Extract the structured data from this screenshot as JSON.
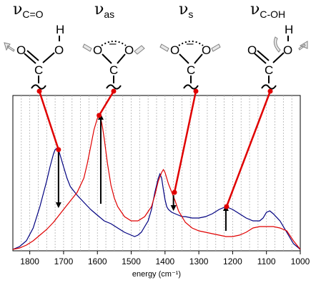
{
  "modes": [
    {
      "symbol": "ν",
      "sub": "C=O"
    },
    {
      "symbol": "ν",
      "sub": "as"
    },
    {
      "symbol": "ν",
      "sub": "s"
    },
    {
      "symbol": "ν",
      "sub": "C-OH"
    }
  ],
  "atoms": {
    "oxygen": "O",
    "carbon": "C",
    "hydrogen": "H",
    "charge": "–"
  },
  "colors": {
    "red": "#e00000",
    "blue": "#000080",
    "grid": "#b0b0b0"
  },
  "chart_data": {
    "type": "line",
    "xlabel": "energy (cm⁻¹)",
    "ylabel": "",
    "xlim": [
      1850,
      1000
    ],
    "ylim": [
      0,
      1
    ],
    "x_reversed": true,
    "xticks": [
      1800,
      1700,
      1600,
      1500,
      1400,
      1300,
      1200,
      1100,
      1000
    ],
    "grid": "vertical dashed every 25 cm-1",
    "series": [
      {
        "color": "#000080",
        "x": [
          1850,
          1830,
          1810,
          1790,
          1770,
          1750,
          1740,
          1730,
          1725,
          1720,
          1715,
          1710,
          1700,
          1690,
          1680,
          1660,
          1640,
          1620,
          1600,
          1580,
          1560,
          1540,
          1520,
          1500,
          1490,
          1480,
          1470,
          1460,
          1450,
          1440,
          1430,
          1420,
          1415,
          1410,
          1405,
          1400,
          1395,
          1390,
          1380,
          1370,
          1360,
          1350,
          1340,
          1320,
          1300,
          1280,
          1260,
          1240,
          1220,
          1200,
          1180,
          1160,
          1140,
          1120,
          1110,
          1100,
          1090,
          1080,
          1060,
          1040,
          1020,
          1000
        ],
        "y": [
          0.0,
          0.02,
          0.06,
          0.15,
          0.3,
          0.48,
          0.58,
          0.67,
          0.7,
          0.71,
          0.7,
          0.66,
          0.58,
          0.5,
          0.44,
          0.38,
          0.33,
          0.28,
          0.24,
          0.2,
          0.18,
          0.15,
          0.12,
          0.1,
          0.09,
          0.1,
          0.12,
          0.16,
          0.2,
          0.28,
          0.4,
          0.5,
          0.53,
          0.5,
          0.42,
          0.35,
          0.3,
          0.28,
          0.26,
          0.25,
          0.24,
          0.23,
          0.23,
          0.22,
          0.22,
          0.23,
          0.25,
          0.28,
          0.3,
          0.28,
          0.25,
          0.22,
          0.2,
          0.2,
          0.22,
          0.26,
          0.27,
          0.25,
          0.2,
          0.12,
          0.04,
          0.0
        ]
      },
      {
        "color": "#e00000",
        "x": [
          1850,
          1830,
          1810,
          1790,
          1770,
          1750,
          1730,
          1710,
          1700,
          1680,
          1660,
          1640,
          1630,
          1620,
          1610,
          1600,
          1595,
          1590,
          1585,
          1580,
          1570,
          1560,
          1550,
          1540,
          1520,
          1500,
          1480,
          1460,
          1440,
          1430,
          1420,
          1410,
          1405,
          1400,
          1395,
          1390,
          1380,
          1370,
          1360,
          1340,
          1320,
          1300,
          1280,
          1260,
          1240,
          1220,
          1200,
          1180,
          1160,
          1140,
          1120,
          1100,
          1080,
          1060,
          1040,
          1020,
          1000
        ],
        "y": [
          0.0,
          0.01,
          0.03,
          0.06,
          0.1,
          0.14,
          0.19,
          0.25,
          0.28,
          0.34,
          0.4,
          0.5,
          0.6,
          0.72,
          0.84,
          0.92,
          0.94,
          0.92,
          0.86,
          0.78,
          0.6,
          0.45,
          0.36,
          0.3,
          0.23,
          0.2,
          0.2,
          0.23,
          0.3,
          0.38,
          0.48,
          0.54,
          0.56,
          0.54,
          0.5,
          0.46,
          0.4,
          0.34,
          0.27,
          0.19,
          0.15,
          0.13,
          0.12,
          0.11,
          0.1,
          0.09,
          0.09,
          0.1,
          0.12,
          0.15,
          0.16,
          0.16,
          0.16,
          0.15,
          0.13,
          0.06,
          0.0
        ]
      }
    ],
    "change_arrows": [
      {
        "x": 1715,
        "from": 0.7,
        "to": 0.3
      },
      {
        "x": 1590,
        "from": 0.32,
        "to": 0.94
      },
      {
        "x": 1375,
        "from": 0.38,
        "to": 0.28
      },
      {
        "x": 1220,
        "from": 0.13,
        "to": 0.3
      }
    ],
    "callouts": [
      {
        "mode": 0,
        "x": 1715,
        "y": 0.7
      },
      {
        "mode": 1,
        "x": 1595,
        "y": 0.94
      },
      {
        "mode": 2,
        "x": 1372,
        "y": 0.4
      },
      {
        "mode": 3,
        "x": 1218,
        "y": 0.3
      }
    ]
  }
}
